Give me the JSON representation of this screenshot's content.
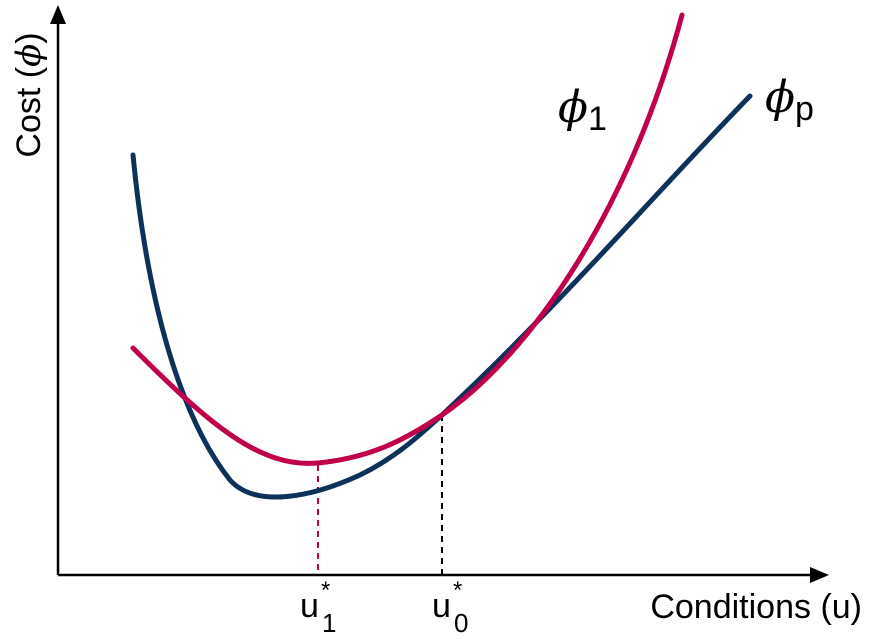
{
  "axes": {
    "y_label": "Cost (",
    "y_label_symbol": "ϕ",
    "y_label_close": ")",
    "x_label": "Conditions (u)"
  },
  "markers": [
    {
      "base": "u",
      "sub": "1",
      "sup": "*",
      "color": "#c0004a"
    },
    {
      "base": "u",
      "sub": "0",
      "sup": "*",
      "color": "#000000"
    }
  ],
  "curves": [
    {
      "symbol": "ϕ",
      "sub": "1",
      "color": "#c0004a"
    },
    {
      "symbol": "ϕ",
      "sub": "p",
      "color": "#0d3259"
    }
  ],
  "colors": {
    "axis": "#000000",
    "curve_phi_1": "#c0004a",
    "curve_phi_p": "#0d3259",
    "guide_u1": "#c0004a",
    "guide_u0": "#000000"
  }
}
